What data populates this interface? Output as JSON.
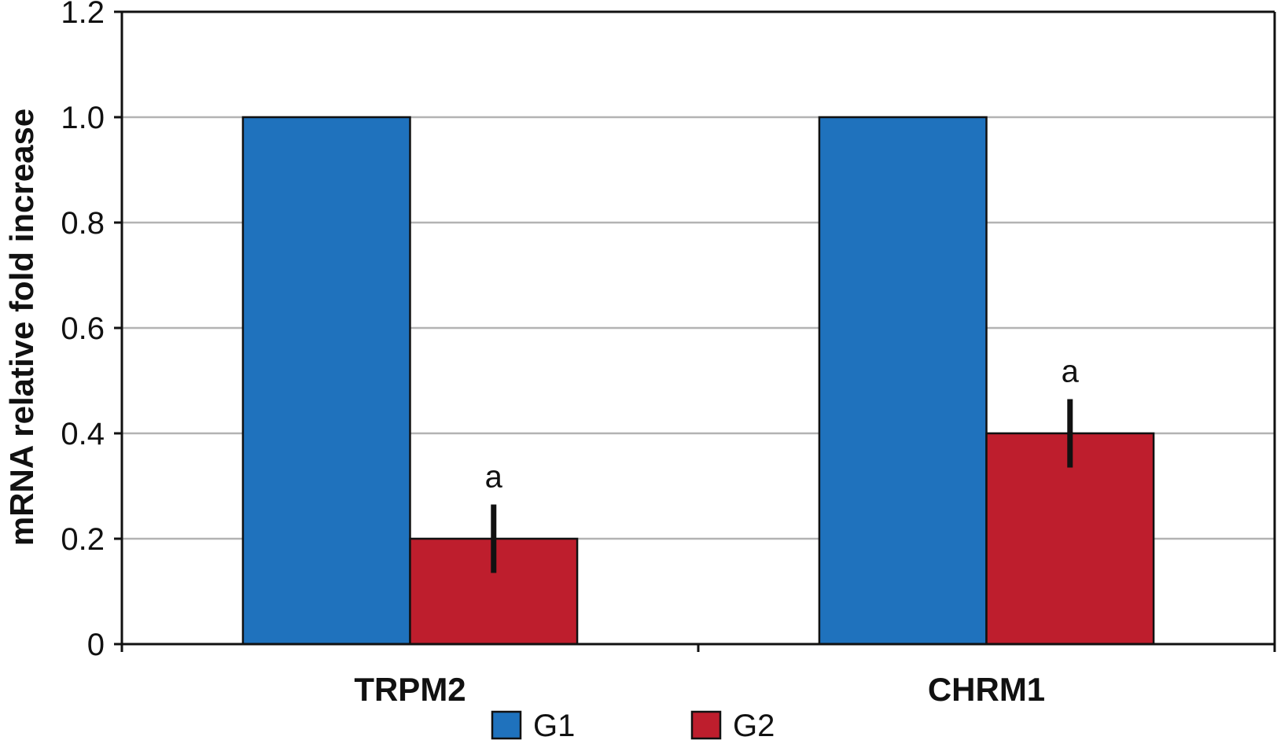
{
  "chart_data": {
    "type": "bar",
    "categories": [
      "TRPM2",
      "CHRM1"
    ],
    "series": [
      {
        "name": "G1",
        "color": "#1f72bd",
        "values": [
          1.0,
          1.0
        ],
        "errors": [
          null,
          null
        ]
      },
      {
        "name": "G2",
        "color": "#be1e2d",
        "values": [
          0.2,
          0.4
        ],
        "errors": [
          0.065,
          0.065
        ]
      }
    ],
    "annotations": [
      {
        "series": "G2",
        "category": "TRPM2",
        "text": "a"
      },
      {
        "series": "G2",
        "category": "CHRM1",
        "text": "a"
      }
    ],
    "xlabel": "",
    "ylabel": "mRNA relative fold increase",
    "ylim": [
      0,
      1.2
    ],
    "yticks": [
      0,
      0.2,
      0.4,
      0.6,
      0.8,
      1.0,
      1.2
    ],
    "ytick_labels": [
      "0",
      "0.2",
      "0.4",
      "0.6",
      "0.8",
      "1.0",
      "1.2"
    ],
    "grid": true,
    "legend_position": "bottom"
  }
}
